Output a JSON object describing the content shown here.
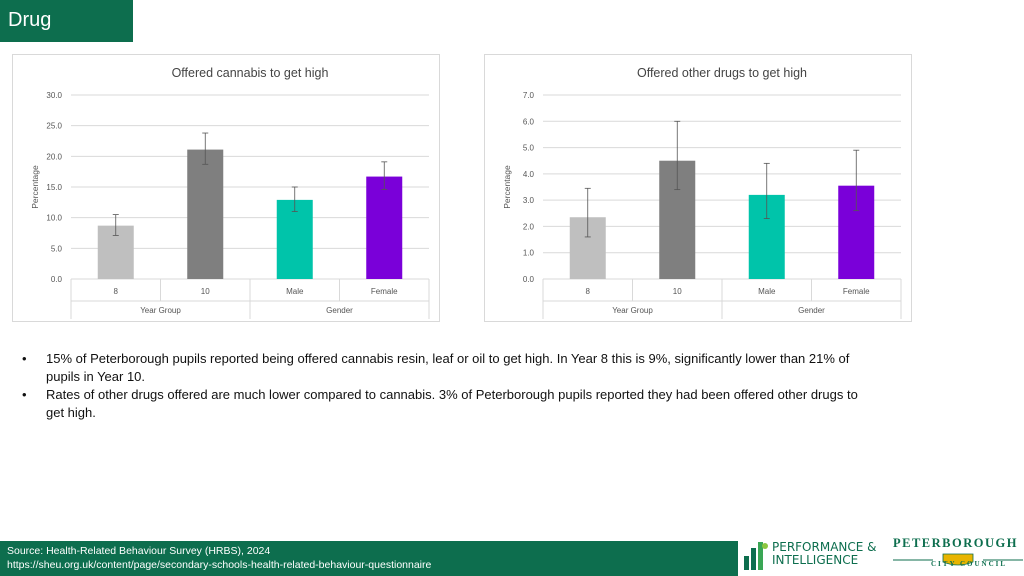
{
  "header": {
    "title": "Drug"
  },
  "chart_data": [
    {
      "type": "bar",
      "title": "Offered cannabis to get high",
      "ylabel": "Percentage",
      "ylim": [
        0,
        30
      ],
      "yticks": [
        "0.0",
        "5.0",
        "10.0",
        "15.0",
        "20.0",
        "25.0",
        "30.0"
      ],
      "categories": [
        "8",
        "10",
        "Male",
        "Female"
      ],
      "groups": [
        "Year Group",
        "Gender"
      ],
      "values": [
        8.7,
        21.1,
        12.9,
        16.7
      ],
      "error_low": [
        7.1,
        18.7,
        11.0,
        14.6
      ],
      "error_high": [
        10.5,
        23.8,
        15.0,
        19.1
      ],
      "colors": [
        "#bfbfbf",
        "#7f7f7f",
        "#00c4aa",
        "#7a00d9"
      ],
      "grid": true
    },
    {
      "type": "bar",
      "title": "Offered other drugs to get high",
      "ylabel": "Percentage",
      "ylim": [
        0,
        7
      ],
      "yticks": [
        "0.0",
        "1.0",
        "2.0",
        "3.0",
        "4.0",
        "5.0",
        "6.0",
        "7.0"
      ],
      "categories": [
        "8",
        "10",
        "Male",
        "Female"
      ],
      "groups": [
        "Year Group",
        "Gender"
      ],
      "values": [
        2.35,
        4.5,
        3.2,
        3.55
      ],
      "error_low": [
        1.6,
        3.4,
        2.3,
        2.6
      ],
      "error_high": [
        3.45,
        6.0,
        4.4,
        4.9
      ],
      "colors": [
        "#bfbfbf",
        "#7f7f7f",
        "#00c4aa",
        "#7a00d9"
      ],
      "grid": true
    }
  ],
  "bullets": [
    "15% of Peterborough pupils reported being offered cannabis resin, leaf or oil to get high. In Year 8 this is 9%, significantly lower than 21% of pupils in Year 10.",
    "Rates of other drugs offered are much lower compared to cannabis. 3% of Peterborough pupils reported they had been offered other drugs to get high."
  ],
  "footer": {
    "source": "Source: Health-Related Behaviour Survey (HRBS), 2024",
    "url": "https://sheu.org.uk/content/page/secondary-schools-health-related-behaviour-questionnaire"
  },
  "logos": {
    "pi_line1": "PERFORMANCE &",
    "pi_line2": "INTELLIGENCE",
    "pcc_main": "PETERBOROUGH",
    "pcc_sub": "CITY COUNCIL"
  }
}
